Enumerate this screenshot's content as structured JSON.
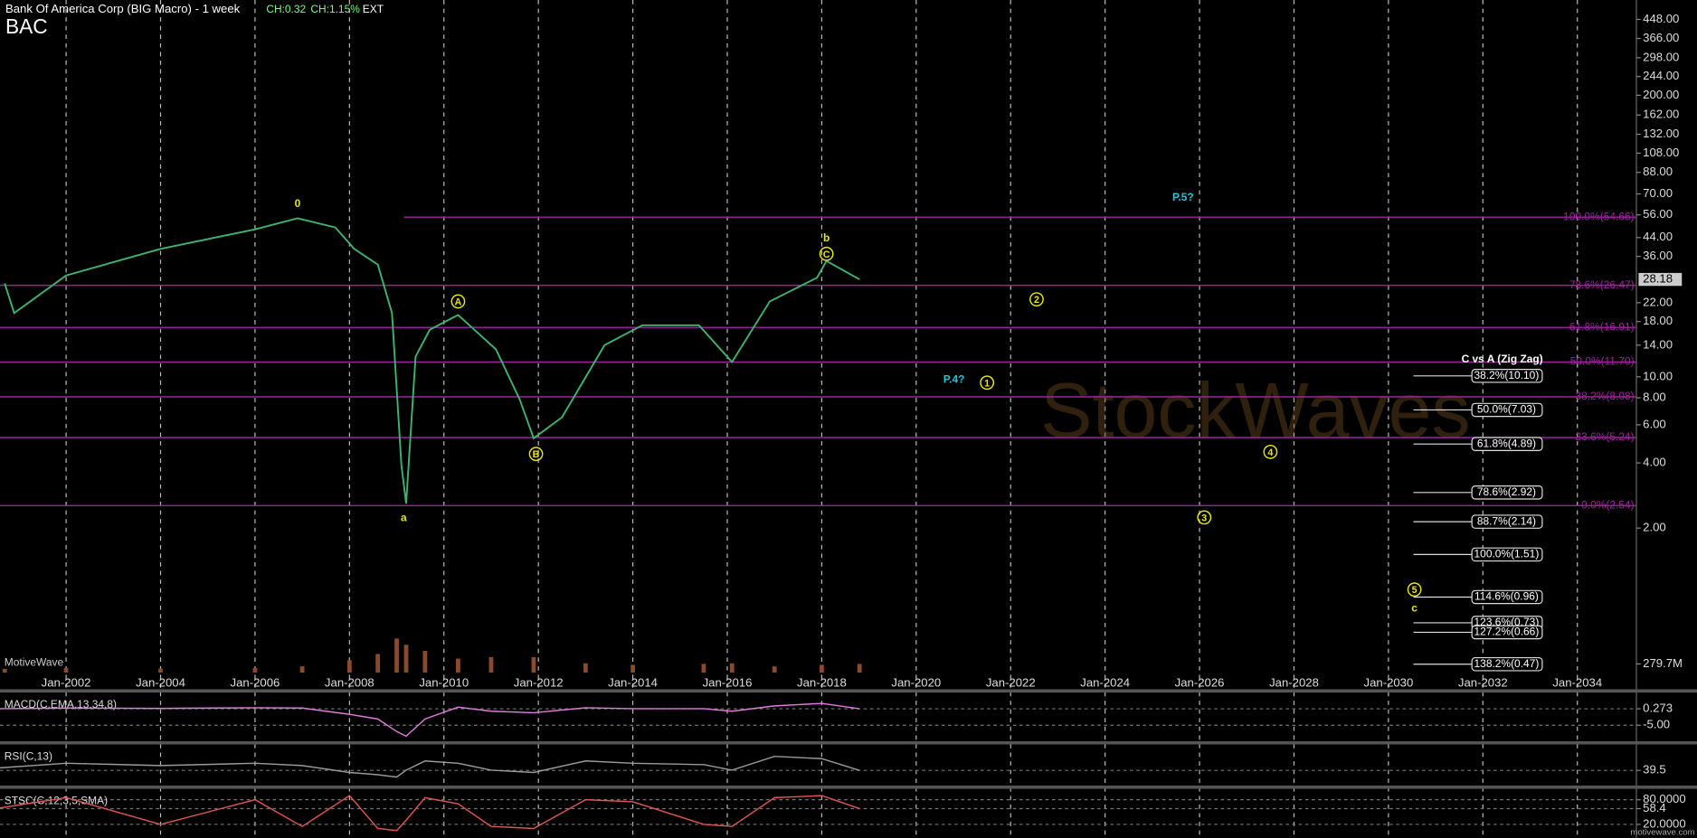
{
  "header": {
    "title": "Bank Of America Corp (BIG Macro) - 1 week",
    "change": "CH:0.32",
    "change_pct": "CH:1.15%",
    "session": "EXT",
    "symbol": "BAC",
    "brand": "MotiveWave",
    "site": "motivewave.com",
    "watermark": "StockWaves"
  },
  "chart_data": [
    {
      "type": "line",
      "log_scale": true,
      "color": "#3cb371",
      "xlim": [
        2000.6,
        2035.25
      ],
      "ylim": [
        0.43,
        520
      ],
      "xticks": [
        {
          "value": 2002,
          "label": "Jan-2002"
        },
        {
          "value": 2004,
          "label": "Jan-2004"
        },
        {
          "value": 2006,
          "label": "Jan-2006"
        },
        {
          "value": 2008,
          "label": "Jan-2008"
        },
        {
          "value": 2010,
          "label": "Jan-2010"
        },
        {
          "value": 2012,
          "label": "Jan-2012"
        },
        {
          "value": 2014,
          "label": "Jan-2014"
        },
        {
          "value": 2016,
          "label": "Jan-2016"
        },
        {
          "value": 2018,
          "label": "Jan-2018"
        },
        {
          "value": 2020,
          "label": "Jan-2020"
        },
        {
          "value": 2022,
          "label": "Jan-2022"
        },
        {
          "value": 2024,
          "label": "Jan-2024"
        },
        {
          "value": 2026,
          "label": "Jan-2026"
        },
        {
          "value": 2028,
          "label": "Jan-2028"
        },
        {
          "value": 2030,
          "label": "Jan-2030"
        },
        {
          "value": 2032,
          "label": "Jan-2032"
        },
        {
          "value": 2034,
          "label": "Jan-2034"
        }
      ],
      "yticks": [
        {
          "value": 448,
          "label": "448.00"
        },
        {
          "value": 366,
          "label": "366.00"
        },
        {
          "value": 298,
          "label": "298.00"
        },
        {
          "value": 244,
          "label": "244.00"
        },
        {
          "value": 200,
          "label": "200.00"
        },
        {
          "value": 162,
          "label": "162.00"
        },
        {
          "value": 132,
          "label": "132.00"
        },
        {
          "value": 108,
          "label": "108.00"
        },
        {
          "value": 88,
          "label": "88.00"
        },
        {
          "value": 70,
          "label": "70.00"
        },
        {
          "value": 56,
          "label": "56.00"
        },
        {
          "value": 44,
          "label": "44.00"
        },
        {
          "value": 36,
          "label": "36.00"
        },
        {
          "value": 22,
          "label": "22.00"
        },
        {
          "value": 18,
          "label": "18.00"
        },
        {
          "value": 14,
          "label": "14.00"
        },
        {
          "value": 10,
          "label": "10.00"
        },
        {
          "value": 8,
          "label": "8.00"
        },
        {
          "value": 6,
          "label": "6.00"
        },
        {
          "value": 4,
          "label": "4.00"
        },
        {
          "value": 2,
          "label": "2.00"
        }
      ],
      "x": [
        2000.7,
        2000.9,
        2002,
        2004,
        2006,
        2006.9,
        2007.7,
        2008.1,
        2008.6,
        2008.9,
        2009.1,
        2009.2,
        2009.4,
        2009.7,
        2010.3,
        2011.1,
        2011.6,
        2011.9,
        2012.5,
        2013.4,
        2014.2,
        2015.4,
        2016.1,
        2016.9,
        2017.9,
        2018.1,
        2018.8
      ],
      "values": [
        27,
        19.7,
        29.4,
        39,
        48,
        54,
        49,
        39,
        33,
        19.7,
        3.9,
        2.6,
        12.4,
        16.5,
        19.3,
        13.4,
        7.9,
        5.2,
        6.5,
        14,
        17.3,
        17.3,
        11.7,
        22.3,
        28.7,
        34.3,
        28.18
      ],
      "last_price": 28.18,
      "levels": [
        {
          "label": "100.0%(54.66)",
          "value": 54.66,
          "from": 2009.15
        },
        {
          "label": "78.6%(26.47)",
          "value": 26.47
        },
        {
          "label": "61.8%(16.91)",
          "value": 16.91
        },
        {
          "label": "50.0%(11.70)",
          "value": 11.7
        },
        {
          "label": "38.2%(8.08)",
          "value": 8.08
        },
        {
          "label": "23.6%(5.24)",
          "value": 5.24
        },
        {
          "label": "0.0%(2.54)",
          "value": 2.54
        }
      ],
      "zigzag_title": "C vs A (Zig Zag)",
      "zigzag": [
        {
          "label": "38.2%(10.10)",
          "value": 10.1
        },
        {
          "label": "50.0%(7.03)",
          "value": 7.03
        },
        {
          "label": "61.8%(4.89)",
          "value": 4.89
        },
        {
          "label": "78.6%(2.92)",
          "value": 2.92
        },
        {
          "label": "88.7%(2.14)",
          "value": 2.14
        },
        {
          "label": "100.0%(1.51)",
          "value": 1.51
        },
        {
          "label": "114.6%(0.96)",
          "value": 0.96
        },
        {
          "label": "123.6%(0.73)",
          "value": 0.73
        },
        {
          "label": "127.2%(0.66)",
          "value": 0.66
        },
        {
          "label": "138.2%(0.47)",
          "value": 0.47
        }
      ],
      "annotations": [
        {
          "text": "0",
          "x": 2006.9,
          "y": 63.5,
          "color": "#e8e800",
          "circled": false
        },
        {
          "text": "a",
          "x": 2009.15,
          "y": 2.24,
          "color": "#e8e800",
          "circled": false
        },
        {
          "text": "A",
          "x": 2010.3,
          "y": 22.3,
          "color": "#e8e800",
          "circled": true
        },
        {
          "text": "B",
          "x": 2011.95,
          "y": 4.4,
          "color": "#e8e800",
          "circled": true
        },
        {
          "text": "C",
          "x": 2018.1,
          "y": 37,
          "color": "#e8e800",
          "circled": true
        },
        {
          "text": "b",
          "x": 2018.1,
          "y": 44,
          "color": "#e8e800",
          "circled": false
        },
        {
          "text": "P.5?",
          "x": 2025.65,
          "y": 68,
          "color": "#22c4d8",
          "circled": false
        },
        {
          "text": "2",
          "x": 2022.55,
          "y": 22.8,
          "color": "#e8e800",
          "circled": true
        },
        {
          "text": "P.4?",
          "x": 2020.8,
          "y": 9.8,
          "color": "#22c4d8",
          "circled": false
        },
        {
          "text": "1",
          "x": 2021.5,
          "y": 9.4,
          "color": "#e8e800",
          "circled": true
        },
        {
          "text": "4",
          "x": 2027.5,
          "y": 4.5,
          "color": "#e8e800",
          "circled": true
        },
        {
          "text": "3",
          "x": 2026.1,
          "y": 2.24,
          "color": "#e8e800",
          "circled": true
        },
        {
          "text": "5",
          "x": 2030.55,
          "y": 1.04,
          "color": "#e8e800",
          "circled": true
        },
        {
          "text": "c",
          "x": 2030.55,
          "y": 0.86,
          "color": "#e8e800",
          "circled": false
        }
      ]
    },
    {
      "type": "bar",
      "color": "#8b4a2b",
      "xlim": [
        2000.6,
        2035.25
      ],
      "ylim": [
        0,
        2200
      ],
      "yticks": [
        {
          "value": 279.7,
          "label": "279.7M"
        }
      ],
      "x": [
        2000.7,
        2002,
        2004,
        2006,
        2007,
        2008,
        2008.6,
        2009.0,
        2009.2,
        2009.6,
        2010.3,
        2011,
        2011.9,
        2013,
        2014,
        2015.5,
        2016.1,
        2017,
        2018,
        2018.8
      ],
      "values": [
        120,
        150,
        130,
        150,
        200,
        400,
        600,
        1100,
        900,
        700,
        450,
        500,
        500,
        300,
        250,
        280,
        300,
        200,
        250,
        279.7
      ]
    },
    {
      "type": "line",
      "title": "MACD(C,EMA,13,34,8)",
      "color": "#e07be0",
      "xlim": [
        2000.6,
        2035.25
      ],
      "ylim": [
        -9.6,
        4.6
      ],
      "yticks": [
        0.273,
        {
          "value": -5,
          "label": "-5.00"
        }
      ],
      "x": [
        2000.6,
        2002,
        2004,
        2006,
        2007,
        2008,
        2008.6,
        2009.0,
        2009.2,
        2009.6,
        2010.3,
        2011,
        2011.9,
        2013,
        2014,
        2015.5,
        2016.1,
        2017,
        2018,
        2018.8
      ],
      "values": [
        0.3,
        0.5,
        0.4,
        0.6,
        0.5,
        -1.5,
        -3,
        -7,
        -8.5,
        -3,
        0.8,
        -0.5,
        -1,
        0.6,
        0.3,
        0.3,
        -0.5,
        1.2,
        2.0,
        0.273
      ]
    },
    {
      "type": "line",
      "title": "RSI(C,13)",
      "color": "#9a9a9a",
      "xlim": [
        2000.6,
        2035.25
      ],
      "ylim": [
        10,
        90
      ],
      "yticks": [
        39.5
      ],
      "x": [
        2000.6,
        2002,
        2004,
        2006,
        2007,
        2008,
        2008.6,
        2009.0,
        2009.2,
        2009.6,
        2010.3,
        2011,
        2011.9,
        2013,
        2014,
        2015.5,
        2016.1,
        2017,
        2018,
        2018.8
      ],
      "values": [
        45,
        55,
        50,
        55,
        50,
        35,
        30,
        25,
        40,
        60,
        55,
        40,
        35,
        60,
        55,
        52,
        40,
        70,
        65,
        39.5
      ]
    },
    {
      "type": "line",
      "title": "STSC(C,12,3,5,SMA)",
      "color": "#e05555",
      "xlim": [
        2000.6,
        2035.25
      ],
      "ylim": [
        0,
        100
      ],
      "yticks": [
        {
          "value": 80,
          "label": "80.0000"
        },
        58.4,
        {
          "value": 20,
          "label": "20.0000"
        }
      ],
      "x": [
        2000.6,
        2002,
        2004,
        2006,
        2007,
        2008,
        2008.6,
        2009.0,
        2009.2,
        2009.6,
        2010.3,
        2011,
        2011.9,
        2013,
        2014,
        2015.5,
        2016.1,
        2017,
        2018,
        2018.8
      ],
      "values": [
        60,
        85,
        20,
        80,
        15,
        90,
        10,
        5,
        30,
        85,
        70,
        15,
        10,
        80,
        75,
        20,
        15,
        85,
        90,
        58.4
      ]
    }
  ]
}
